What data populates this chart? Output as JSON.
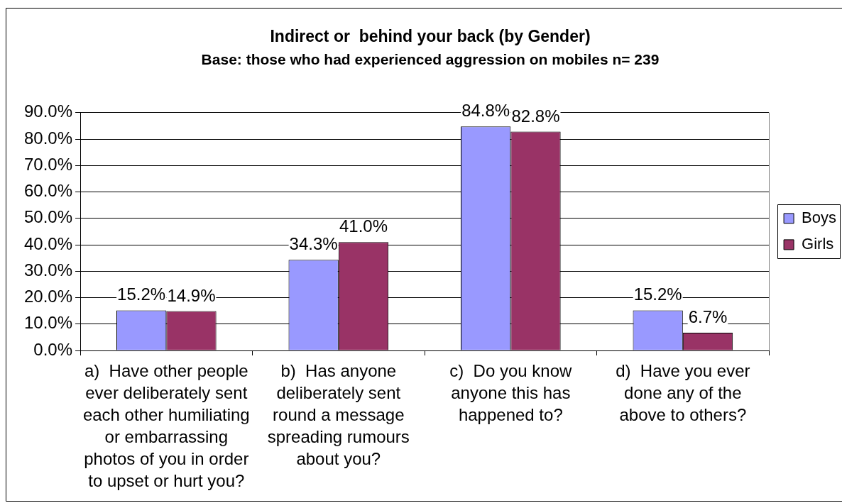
{
  "chart_data": {
    "type": "bar",
    "title": "Indirect or  behind your back (by Gender)",
    "subtitle": "Base: those who had experienced aggression on mobiles n= 239",
    "categories": [
      "a)  Have other people ever deliberately sent each other humiliating or embarrassing photos of you in order to upset or hurt you?",
      "b)  Has anyone deliberately sent round a message spreading rumours about you?",
      "c)  Do you know anyone this has happened to?",
      "d)  Have you ever done any of the above to others?"
    ],
    "series": [
      {
        "name": "Boys",
        "color": "#9999ff",
        "values": [
          15.2,
          34.3,
          84.8,
          15.2
        ],
        "value_labels": [
          "15.2%",
          "34.3%",
          "84.8%",
          "15.2%"
        ]
      },
      {
        "name": "Girls",
        "color": "#993366",
        "values": [
          14.9,
          41.0,
          82.8,
          6.7
        ],
        "value_labels": [
          "14.9%",
          "41.0%",
          "82.8%",
          "6.7%"
        ]
      }
    ],
    "ylim": [
      0,
      90
    ],
    "yticks": [
      {
        "value": 0,
        "label": "0.0%"
      },
      {
        "value": 10,
        "label": "10.0%"
      },
      {
        "value": 20,
        "label": "20.0%"
      },
      {
        "value": 30,
        "label": "30.0%"
      },
      {
        "value": 40,
        "label": "40.0%"
      },
      {
        "value": 50,
        "label": "50.0%"
      },
      {
        "value": 60,
        "label": "60.0%"
      },
      {
        "value": 70,
        "label": "70.0%"
      },
      {
        "value": 80,
        "label": "80.0%"
      },
      {
        "value": 90,
        "label": "90.0%"
      }
    ],
    "grid": "y",
    "legend": "right"
  }
}
